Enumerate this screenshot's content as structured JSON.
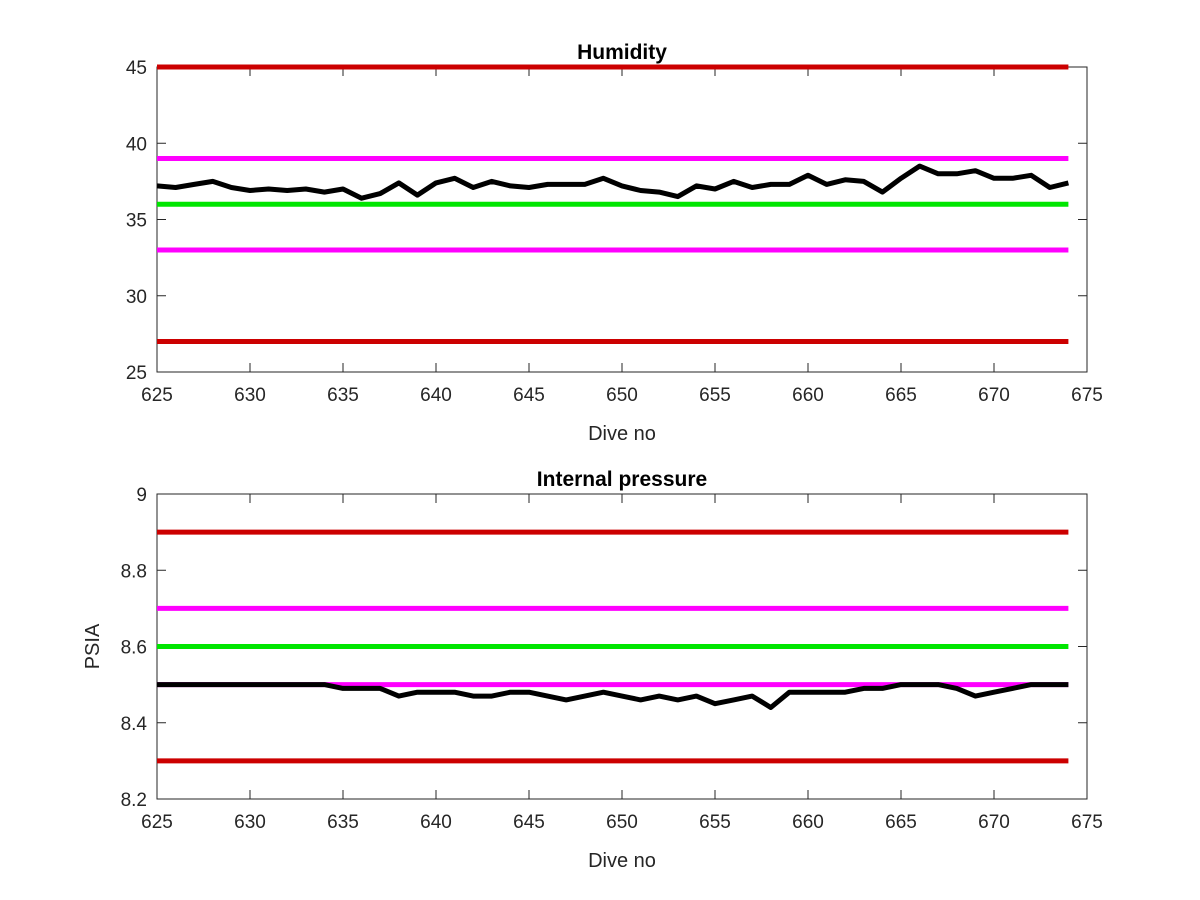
{
  "chart_data": [
    {
      "type": "line",
      "title": "Humidity",
      "xlabel": "Dive no",
      "ylabel": "",
      "xlim": [
        625,
        675
      ],
      "ylim": [
        25,
        45
      ],
      "xticks": [
        "625",
        "630",
        "635",
        "640",
        "645",
        "650",
        "655",
        "660",
        "665",
        "670",
        "675"
      ],
      "yticks": [
        "25",
        "30",
        "35",
        "40",
        "45"
      ],
      "grid": false,
      "reference_lines": [
        {
          "y": 45,
          "color": "#cc0000"
        },
        {
          "y": 39,
          "color": "#ff00ff"
        },
        {
          "y": 36,
          "color": "#00e600"
        },
        {
          "y": 33,
          "color": "#ff00ff"
        },
        {
          "y": 27,
          "color": "#cc0000"
        }
      ],
      "series": [
        {
          "color": "#000000",
          "x": [
            625,
            626,
            627,
            628,
            629,
            630,
            631,
            632,
            633,
            634,
            635,
            636,
            637,
            638,
            639,
            640,
            641,
            642,
            643,
            644,
            645,
            646,
            647,
            648,
            649,
            650,
            651,
            652,
            653,
            654,
            655,
            656,
            657,
            658,
            659,
            660,
            661,
            662,
            663,
            664,
            665,
            666,
            667,
            668,
            669,
            670,
            671,
            672,
            673,
            674
          ],
          "values": [
            37.2,
            37.1,
            37.3,
            37.5,
            37.1,
            36.9,
            37.0,
            36.9,
            37.0,
            36.8,
            37.0,
            36.4,
            36.7,
            37.4,
            36.6,
            37.4,
            37.7,
            37.1,
            37.5,
            37.2,
            37.1,
            37.3,
            37.3,
            37.3,
            37.7,
            37.2,
            36.9,
            36.8,
            36.5,
            37.2,
            37.0,
            37.5,
            37.1,
            37.3,
            37.3,
            37.9,
            37.3,
            37.6,
            37.5,
            36.8,
            37.7,
            38.5,
            38.0,
            38.0,
            38.2,
            37.7,
            37.7,
            37.9,
            37.1,
            37.4
          ]
        }
      ]
    },
    {
      "type": "line",
      "title": "Internal pressure",
      "xlabel": "Dive no",
      "ylabel": "PSIA",
      "xlim": [
        625,
        675
      ],
      "ylim": [
        8.2,
        9
      ],
      "xticks": [
        "625",
        "630",
        "635",
        "640",
        "645",
        "650",
        "655",
        "660",
        "665",
        "670",
        "675"
      ],
      "yticks": [
        "8.2",
        "8.4",
        "8.6",
        "8.8",
        "9"
      ],
      "grid": false,
      "reference_lines": [
        {
          "y": 8.9,
          "color": "#cc0000"
        },
        {
          "y": 8.7,
          "color": "#ff00ff"
        },
        {
          "y": 8.6,
          "color": "#00e600"
        },
        {
          "y": 8.5,
          "color": "#ff00ff"
        },
        {
          "y": 8.3,
          "color": "#cc0000"
        }
      ],
      "series": [
        {
          "color": "#000000",
          "x": [
            625,
            626,
            627,
            628,
            629,
            630,
            631,
            632,
            633,
            634,
            635,
            636,
            637,
            638,
            639,
            640,
            641,
            642,
            643,
            644,
            645,
            646,
            647,
            648,
            649,
            650,
            651,
            652,
            653,
            654,
            655,
            656,
            657,
            658,
            659,
            660,
            661,
            662,
            663,
            664,
            665,
            666,
            667,
            668,
            669,
            670,
            671,
            672,
            673,
            674
          ],
          "values": [
            8.5,
            8.5,
            8.5,
            8.5,
            8.5,
            8.5,
            8.5,
            8.5,
            8.5,
            8.5,
            8.49,
            8.49,
            8.49,
            8.47,
            8.48,
            8.48,
            8.48,
            8.47,
            8.47,
            8.48,
            8.48,
            8.47,
            8.46,
            8.47,
            8.48,
            8.47,
            8.46,
            8.47,
            8.46,
            8.47,
            8.45,
            8.46,
            8.47,
            8.44,
            8.48,
            8.48,
            8.48,
            8.48,
            8.49,
            8.49,
            8.5,
            8.5,
            8.5,
            8.49,
            8.47,
            8.48,
            8.49,
            8.5,
            8.5,
            8.5
          ]
        }
      ]
    }
  ]
}
